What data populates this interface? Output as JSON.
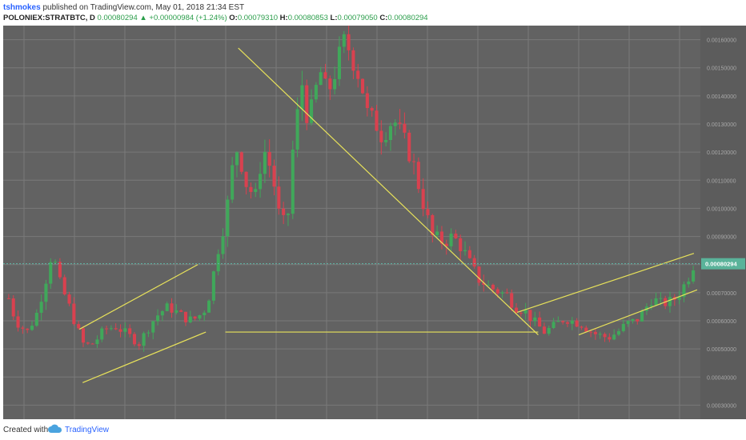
{
  "header": {
    "author": "tshmokes",
    "published": "published on TradingView.com, May 01, 2018 21:34 EST",
    "symbol": "POLONIEX:STRATBTC, D",
    "last": "0.00080294",
    "change": "+0.00000984 (+1.24%)",
    "o_label": "O:",
    "o_value": "0.00079310",
    "h_label": "H:",
    "h_value": "0.00080853",
    "l_label": "L:",
    "l_value": "0.00079050",
    "c_label": "C:",
    "c_value": "0.00080294"
  },
  "footer": {
    "created_with": "Created with",
    "brand": "TradingView"
  },
  "colors": {
    "plot_bg": "#626262",
    "up": "#40a85a",
    "down": "#d9414f",
    "trend": "#e8e25a",
    "grid": "#7a7a7a",
    "price_line": "#5db6a8",
    "price_tag": "#5ab39a"
  },
  "chart_data": {
    "type": "candlestick",
    "price_label": "0.00080294",
    "y_ticks": [
      "0.00160000",
      "0.00150000",
      "0.00140000",
      "0.00130000",
      "0.00120000",
      "0.00110000",
      "0.00100000",
      "0.00090000",
      "0.00080000",
      "0.00070000",
      "0.00060000",
      "0.00050000",
      "0.00040000",
      "0.00030000"
    ],
    "ylim": [
      0.00025,
      0.00165
    ],
    "n_days": 148,
    "path": [
      [
        0,
        0.00068
      ],
      [
        3,
        0.0006
      ],
      [
        8,
        0.00056
      ],
      [
        12,
        0.00062
      ],
      [
        16,
        0.00074
      ],
      [
        19,
        0.00085
      ],
      [
        22,
        0.00074
      ],
      [
        26,
        0.00066
      ],
      [
        30,
        0.00057
      ],
      [
        33,
        0.00051
      ],
      [
        37,
        0.00052
      ],
      [
        42,
        0.00057
      ],
      [
        47,
        0.00058
      ],
      [
        52,
        0.00055
      ],
      [
        57,
        0.00052
      ],
      [
        62,
        0.00059
      ],
      [
        66,
        0.00063
      ],
      [
        70,
        0.00065
      ],
      [
        75,
        0.00062
      ],
      [
        80,
        0.0006
      ],
      [
        85,
        0.00063
      ],
      [
        88,
        0.0007
      ],
      [
        91,
        0.00084
      ],
      [
        95,
        0.00098
      ],
      [
        98,
        0.00116
      ],
      [
        100,
        0.00122
      ],
      [
        104,
        0.00108
      ],
      [
        108,
        0.00104
      ],
      [
        111,
        0.00122
      ],
      [
        115,
        0.00113
      ],
      [
        119,
        0.00093
      ],
      [
        122,
        0.00098
      ],
      [
        124,
        0.0012
      ],
      [
        128,
        0.00145
      ],
      [
        131,
        0.0013
      ],
      [
        136,
        0.00149
      ],
      [
        139,
        0.0014
      ],
      [
        143,
        0.0015
      ],
      [
        147,
        0.0016
      ],
      [
        151,
        0.00152
      ],
      [
        154,
        0.00145
      ],
      [
        157,
        0.00132
      ],
      [
        160,
        0.00131
      ],
      [
        163,
        0.00126
      ],
      [
        168,
        0.00132
      ],
      [
        172,
        0.00125
      ],
      [
        176,
        0.00118
      ],
      [
        181,
        0.00102
      ],
      [
        185,
        0.0009
      ],
      [
        190,
        0.00088
      ],
      [
        194,
        0.0009
      ],
      [
        198,
        0.00086
      ],
      [
        201,
        0.00081
      ],
      [
        205,
        0.00075
      ],
      [
        210,
        0.00072
      ],
      [
        215,
        0.0007
      ],
      [
        218,
        0.00069
      ],
      [
        221,
        0.00065
      ],
      [
        225,
        0.00064
      ],
      [
        229,
        0.0006
      ],
      [
        234,
        0.00056
      ],
      [
        238,
        0.00058
      ],
      [
        243,
        0.00061
      ],
      [
        246,
        0.0006
      ],
      [
        250,
        0.00059
      ],
      [
        253,
        0.00057
      ],
      [
        257,
        0.00055
      ],
      [
        262,
        0.00054
      ],
      [
        266,
        0.00056
      ],
      [
        270,
        0.00059
      ],
      [
        274,
        0.0006
      ],
      [
        277,
        0.00063
      ],
      [
        281,
        0.00068
      ],
      [
        285,
        0.00066
      ],
      [
        290,
        0.00067
      ],
      [
        293,
        0.0007
      ],
      [
        296,
        0.00074
      ],
      [
        299,
        0.0008
      ]
    ],
    "path_domain": 299,
    "trendlines": [
      {
        "from": [
          47,
          0.00057
        ],
        "to": [
          120,
          0.0008
        ]
      },
      {
        "from": [
          49,
          0.00038
        ],
        "to": [
          125,
          0.00056
        ]
      },
      {
        "from": [
          145,
          0.00157
        ],
        "to": [
          330,
          0.00055
        ]
      },
      {
        "from": [
          137,
          0.00056
        ],
        "to": [
          330,
          0.00056
        ]
      },
      {
        "from": [
          317,
          0.00063
        ],
        "to": [
          426,
          0.00084
        ]
      },
      {
        "from": [
          355,
          0.00055
        ],
        "to": [
          428,
          0.00071
        ]
      }
    ],
    "trend_domain": 430
  }
}
